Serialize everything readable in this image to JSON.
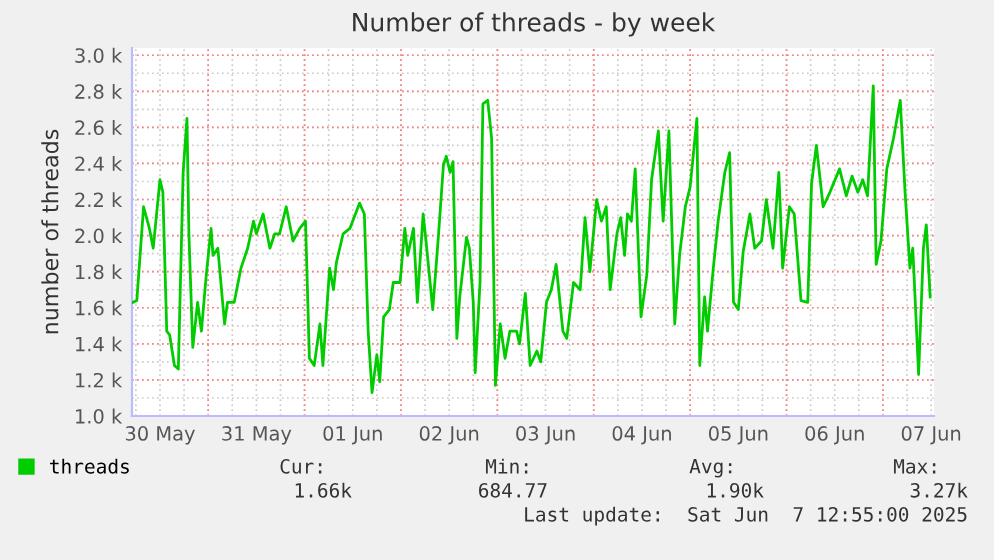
{
  "chart_data": {
    "type": "line",
    "title": "Number of threads - by week",
    "ylabel": "number of threads",
    "x": [
      "2025-05-30T05:17",
      "2025-05-30T06:14",
      "2025-05-30T07:55",
      "2025-05-30T09:22",
      "2025-05-30T10:19",
      "2025-05-30T12:00",
      "2025-05-30T12:43",
      "2025-05-30T13:41",
      "2025-05-30T14:24",
      "2025-05-30T15:36",
      "2025-05-30T16:34",
      "2025-05-30T17:46",
      "2025-05-30T18:43",
      "2025-05-30T19:12",
      "2025-05-30T20:10",
      "2025-05-30T21:22",
      "2025-05-30T22:19",
      "2025-05-30T23:31",
      "2025-05-31T00:43",
      "2025-05-31T01:12",
      "2025-05-31T02:24",
      "2025-05-31T04:05",
      "2025-05-31T04:48",
      "2025-05-31T06:29",
      "2025-05-31T08:10",
      "2025-05-31T09:50",
      "2025-05-31T11:17",
      "2025-05-31T12:00",
      "2025-05-31T13:41",
      "2025-05-31T15:22",
      "2025-05-31T16:34",
      "2025-05-31T17:46",
      "2025-05-31T19:26",
      "2025-05-31T21:07",
      "2025-05-31T22:48",
      "2025-06-01T00:14",
      "2025-06-01T01:12",
      "2025-06-01T02:24",
      "2025-06-01T03:50",
      "2025-06-01T04:34",
      "2025-06-01T06:14",
      "2025-06-01T07:12",
      "2025-06-01T07:55",
      "2025-06-01T09:36",
      "2025-06-01T11:17",
      "2025-06-01T13:41",
      "2025-06-01T14:53",
      "2025-06-01T15:50",
      "2025-06-01T16:48",
      "2025-06-01T18:00",
      "2025-06-01T18:43",
      "2025-06-01T19:41",
      "2025-06-01T21:07",
      "2025-06-01T22:05",
      "2025-06-01T23:46",
      "2025-06-02T00:58",
      "2025-06-02T01:41",
      "2025-06-02T03:07",
      "2025-06-02T04:05",
      "2025-06-02T05:31",
      "2025-06-02T06:14",
      "2025-06-02T07:55",
      "2025-06-02T09:22",
      "2025-06-02T10:34",
      "2025-06-02T11:17",
      "2025-06-02T12:14",
      "2025-06-02T12:58",
      "2025-06-02T13:55",
      "2025-06-02T14:38",
      "2025-06-02T16:19",
      "2025-06-02T17:02",
      "2025-06-02T18:00",
      "2025-06-02T18:29",
      "2025-06-02T19:41",
      "2025-06-02T20:24",
      "2025-06-02T21:36",
      "2025-06-02T22:34",
      "2025-06-02T23:31",
      "2025-06-03T00:43",
      "2025-06-03T01:55",
      "2025-06-03T03:07",
      "2025-06-03T04:48",
      "2025-06-03T05:31",
      "2025-06-03T06:58",
      "2025-06-03T08:10",
      "2025-06-03T09:50",
      "2025-06-03T10:48",
      "2025-06-03T12:14",
      "2025-06-03T13:26",
      "2025-06-03T14:38",
      "2025-06-03T16:19",
      "2025-06-03T17:17",
      "2025-06-03T18:58",
      "2025-06-03T20:38",
      "2025-06-03T21:50",
      "2025-06-03T23:02",
      "2025-06-04T00:43",
      "2025-06-04T01:55",
      "2025-06-04T03:07",
      "2025-06-04T04:05",
      "2025-06-04T05:46",
      "2025-06-04T06:43",
      "2025-06-04T07:41",
      "2025-06-04T08:24",
      "2025-06-04T09:22",
      "2025-06-04T10:19",
      "2025-06-04T11:46",
      "2025-06-04T13:12",
      "2025-06-04T14:24",
      "2025-06-04T16:05",
      "2025-06-04T17:17",
      "2025-06-04T18:43",
      "2025-06-04T20:10",
      "2025-06-04T21:22",
      "2025-06-04T22:48",
      "2025-06-05T00:00",
      "2025-06-05T01:41",
      "2025-06-05T02:24",
      "2025-06-05T03:36",
      "2025-06-05T04:19",
      "2025-06-05T05:46",
      "2025-06-05T06:58",
      "2025-06-05T08:38",
      "2025-06-05T09:50",
      "2025-06-05T10:48",
      "2025-06-05T12:00",
      "2025-06-05T13:12",
      "2025-06-05T14:53",
      "2025-06-05T16:05",
      "2025-06-05T17:46",
      "2025-06-05T18:58",
      "2025-06-05T20:38",
      "2025-06-05T22:05",
      "2025-06-05T23:02",
      "2025-06-06T00:43",
      "2025-06-06T01:55",
      "2025-06-06T03:36",
      "2025-06-06T05:17",
      "2025-06-06T06:14",
      "2025-06-06T07:26",
      "2025-06-06T09:07",
      "2025-06-06T10:48",
      "2025-06-06T13:12",
      "2025-06-06T14:53",
      "2025-06-06T16:19",
      "2025-06-06T17:46",
      "2025-06-06T18:58",
      "2025-06-06T20:10",
      "2025-06-06T21:36",
      "2025-06-06T22:19",
      "2025-06-06T23:31",
      "2025-06-07T00:58",
      "2025-06-07T02:38",
      "2025-06-07T04:19",
      "2025-06-07T05:31",
      "2025-06-07T06:43",
      "2025-06-07T07:26",
      "2025-06-07T08:53",
      "2025-06-07T10:05",
      "2025-06-07T10:48",
      "2025-06-07T11:46"
    ],
    "series": [
      {
        "name": "threads",
        "color": "#00cc00",
        "values": [
          1630,
          1640,
          2160,
          2040,
          1930,
          2310,
          2240,
          1470,
          1450,
          1280,
          1260,
          2350,
          2650,
          2010,
          1380,
          1630,
          1470,
          1780,
          2040,
          1890,
          1930,
          1510,
          1630,
          1630,
          1820,
          1930,
          2080,
          2010,
          2120,
          1930,
          2010,
          2010,
          2160,
          1970,
          2040,
          2080,
          1320,
          1280,
          1510,
          1280,
          1820,
          1700,
          1850,
          2010,
          2040,
          2180,
          2120,
          1470,
          1130,
          1340,
          1190,
          1550,
          1590,
          1740,
          1740,
          2040,
          1890,
          2040,
          1630,
          2120,
          1970,
          1590,
          2010,
          2390,
          2440,
          2350,
          2410,
          1430,
          1660,
          1990,
          1930,
          1630,
          1240,
          1740,
          2730,
          2750,
          2540,
          1170,
          1510,
          1320,
          1470,
          1470,
          1400,
          1680,
          1280,
          1360,
          1300,
          1630,
          1700,
          1840,
          1470,
          1430,
          1740,
          1700,
          2100,
          1800,
          2200,
          2080,
          2160,
          1700,
          2010,
          2100,
          1890,
          2120,
          2080,
          2370,
          1550,
          1780,
          2310,
          2580,
          2080,
          2580,
          1510,
          1890,
          2160,
          2270,
          2650,
          1280,
          1660,
          1470,
          1820,
          2080,
          2350,
          2460,
          1630,
          1590,
          1910,
          2120,
          1930,
          1970,
          2200,
          1930,
          2350,
          1820,
          2160,
          2120,
          1640,
          1630,
          2290,
          2500,
          2160,
          2240,
          2370,
          2220,
          2330,
          2240,
          2310,
          2220,
          2830,
          1840,
          1970,
          2370,
          2540,
          2750,
          2240,
          1820,
          1930,
          1230,
          1930,
          2060,
          1660
        ]
      }
    ],
    "xlim": [
      "2025-05-30T05:02",
      "2025-06-07T12:43"
    ],
    "xticks": [
      {
        "value": "2025-05-30T12:00",
        "label": "30 May"
      },
      {
        "value": "2025-05-31T12:00",
        "label": "31 May"
      },
      {
        "value": "2025-06-01T12:00",
        "label": "01 Jun"
      },
      {
        "value": "2025-06-02T12:00",
        "label": "02 Jun"
      },
      {
        "value": "2025-06-03T12:00",
        "label": "03 Jun"
      },
      {
        "value": "2025-06-04T12:00",
        "label": "04 Jun"
      },
      {
        "value": "2025-06-05T12:00",
        "label": "05 Jun"
      },
      {
        "value": "2025-06-06T12:00",
        "label": "06 Jun"
      },
      {
        "value": "2025-06-07T12:00",
        "label": "07 Jun"
      }
    ],
    "ylim": [
      1000,
      3040
    ],
    "yticks": [
      {
        "value": 1000,
        "label": "1.0 k"
      },
      {
        "value": 1200,
        "label": "1.2 k"
      },
      {
        "value": 1400,
        "label": "1.4 k"
      },
      {
        "value": 1600,
        "label": "1.6 k"
      },
      {
        "value": 1800,
        "label": "1.8 k"
      },
      {
        "value": 2000,
        "label": "2.0 k"
      },
      {
        "value": 2200,
        "label": "2.2 k"
      },
      {
        "value": 2400,
        "label": "2.4 k"
      },
      {
        "value": 2600,
        "label": "2.6 k"
      },
      {
        "value": 2800,
        "label": "2.8 k"
      },
      {
        "value": 3000,
        "label": "3.0 k"
      }
    ],
    "grid": true,
    "legend": "bottom left",
    "marker": "none",
    "line_style": "solid",
    "annotations": [
      "Cur:",
      "Min:",
      "Avg:",
      "Max:",
      "1.66k",
      "684.77",
      "1.90k",
      "3.27k",
      "Last update:  Sat Jun  7 12:55:00 2025"
    ]
  }
}
